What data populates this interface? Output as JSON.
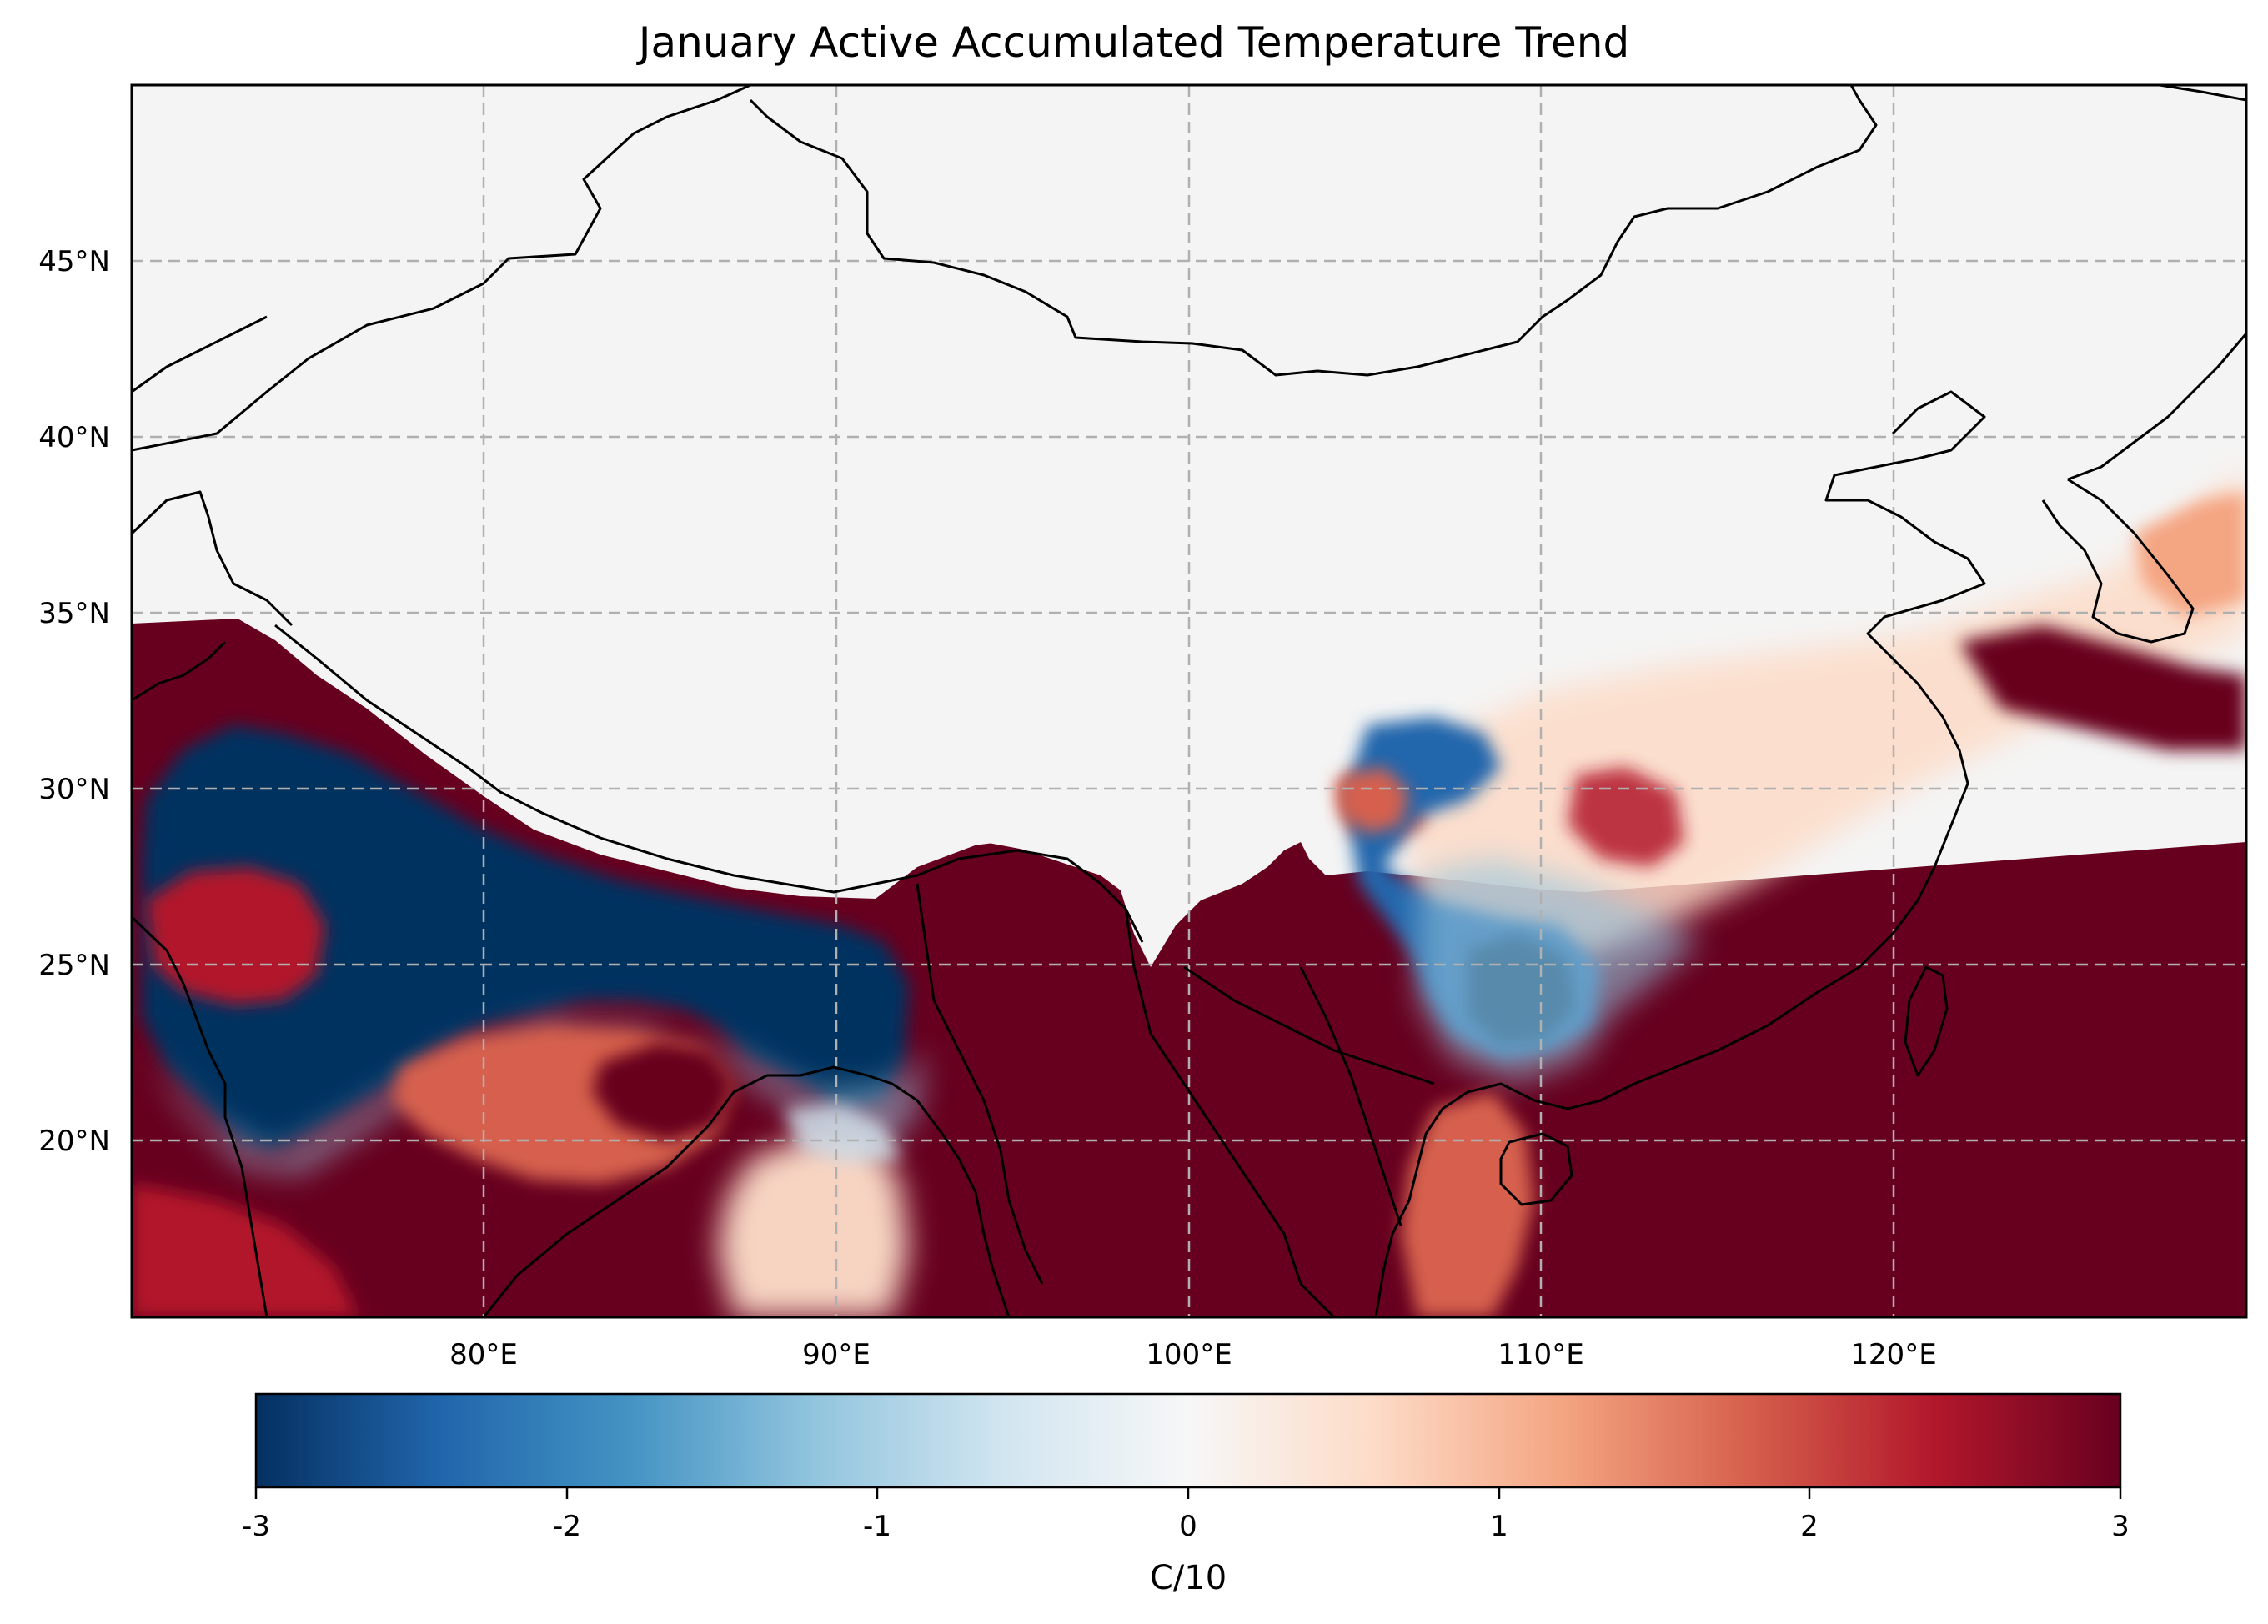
{
  "title": "January Active Accumulated Temperature Trend",
  "lon_ticks": [
    "80°E",
    "90°E",
    "100°E",
    "110°E",
    "120°E"
  ],
  "lat_ticks": [
    "45°N",
    "40°N",
    "35°N",
    "30°N",
    "25°N",
    "20°N"
  ],
  "colorbar": {
    "label": "C/10",
    "ticks": [
      "-3",
      "-2",
      "-1",
      "0",
      "1",
      "2",
      "3"
    ],
    "colormap": "RdBu_r",
    "colors": [
      "#053061",
      "#2166ac",
      "#4393c3",
      "#92c5de",
      "#d1e5f0",
      "#f7f7f7",
      "#fddbc7",
      "#f4a582",
      "#d6604d",
      "#b2182b",
      "#67001f"
    ]
  },
  "map": {
    "lon_range": [
      70,
      130
    ],
    "lat_range": [
      15,
      50
    ],
    "gridlines": "dashed",
    "background_color": "#f4f4f4"
  }
}
